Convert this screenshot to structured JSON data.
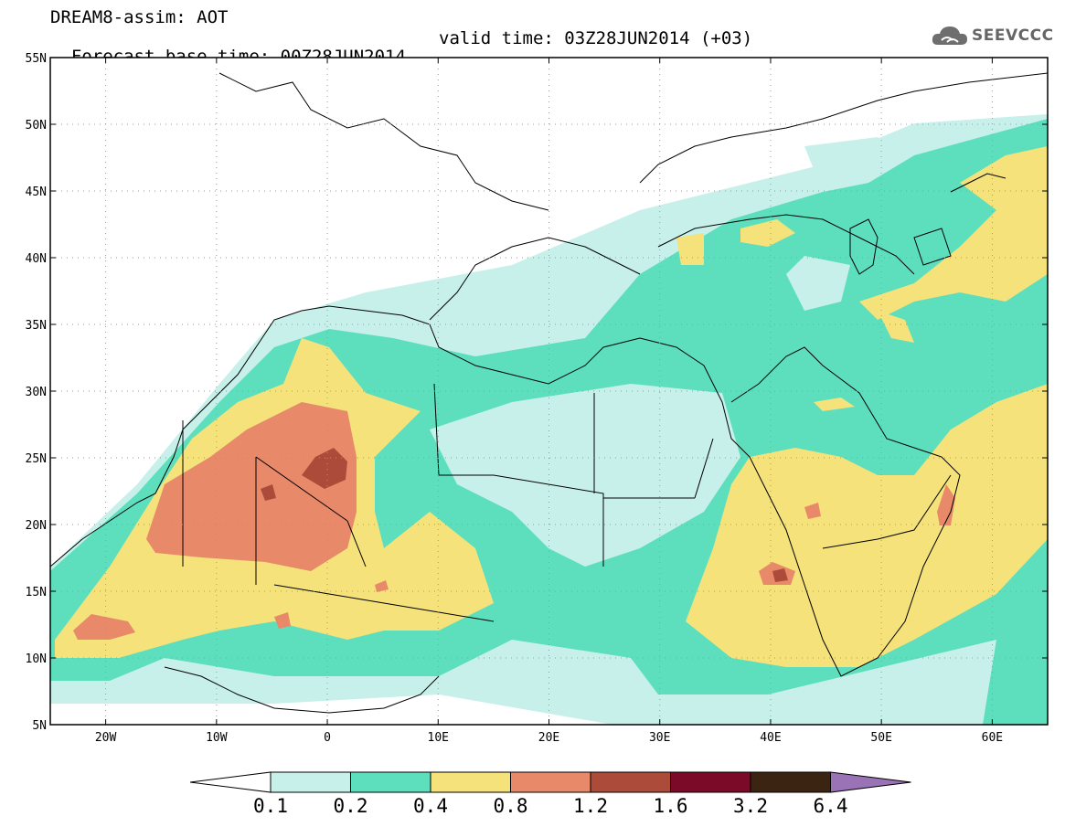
{
  "title": {
    "line1": "DREAM8-assim: AOT",
    "base_time": "Forecast base time: 00Z28JUN2014",
    "valid_time": "valid time: 03Z28JUN2014 (+03)"
  },
  "logo": {
    "text": "SEEVCCC",
    "icon": "cloud-logo-icon",
    "color": "#6e6e6e"
  },
  "map": {
    "lat_range": [
      5,
      55
    ],
    "lon_range": [
      -25,
      65
    ],
    "lat_ticks": [
      {
        "value": 55,
        "label": "55N"
      },
      {
        "value": 50,
        "label": "50N"
      },
      {
        "value": 45,
        "label": "45N"
      },
      {
        "value": 40,
        "label": "40N"
      },
      {
        "value": 35,
        "label": "35N"
      },
      {
        "value": 30,
        "label": "30N"
      },
      {
        "value": 25,
        "label": "25N"
      },
      {
        "value": 20,
        "label": "20N"
      },
      {
        "value": 15,
        "label": "15N"
      },
      {
        "value": 10,
        "label": "10N"
      },
      {
        "value": 5,
        "label": "5N"
      }
    ],
    "lon_ticks": [
      {
        "value": -20,
        "label": "20W"
      },
      {
        "value": -10,
        "label": "10W"
      },
      {
        "value": 0,
        "label": "0"
      },
      {
        "value": 10,
        "label": "10E"
      },
      {
        "value": 20,
        "label": "20E"
      },
      {
        "value": 30,
        "label": "30E"
      },
      {
        "value": 40,
        "label": "40E"
      },
      {
        "value": 50,
        "label": "50E"
      },
      {
        "value": 60,
        "label": "60E"
      }
    ],
    "gridlines": "dotted"
  },
  "colorbar": {
    "labels": [
      "0.1",
      "0.2",
      "0.4",
      "0.8",
      "1.2",
      "1.6",
      "3.2",
      "6.4"
    ],
    "colors": [
      "#ffffff",
      "#c8f0ea",
      "#5ddfbe",
      "#f5e27a",
      "#e8896a",
      "#ad4b3a",
      "#7b0a28",
      "#3b2412",
      "#9a73b6"
    ]
  }
}
